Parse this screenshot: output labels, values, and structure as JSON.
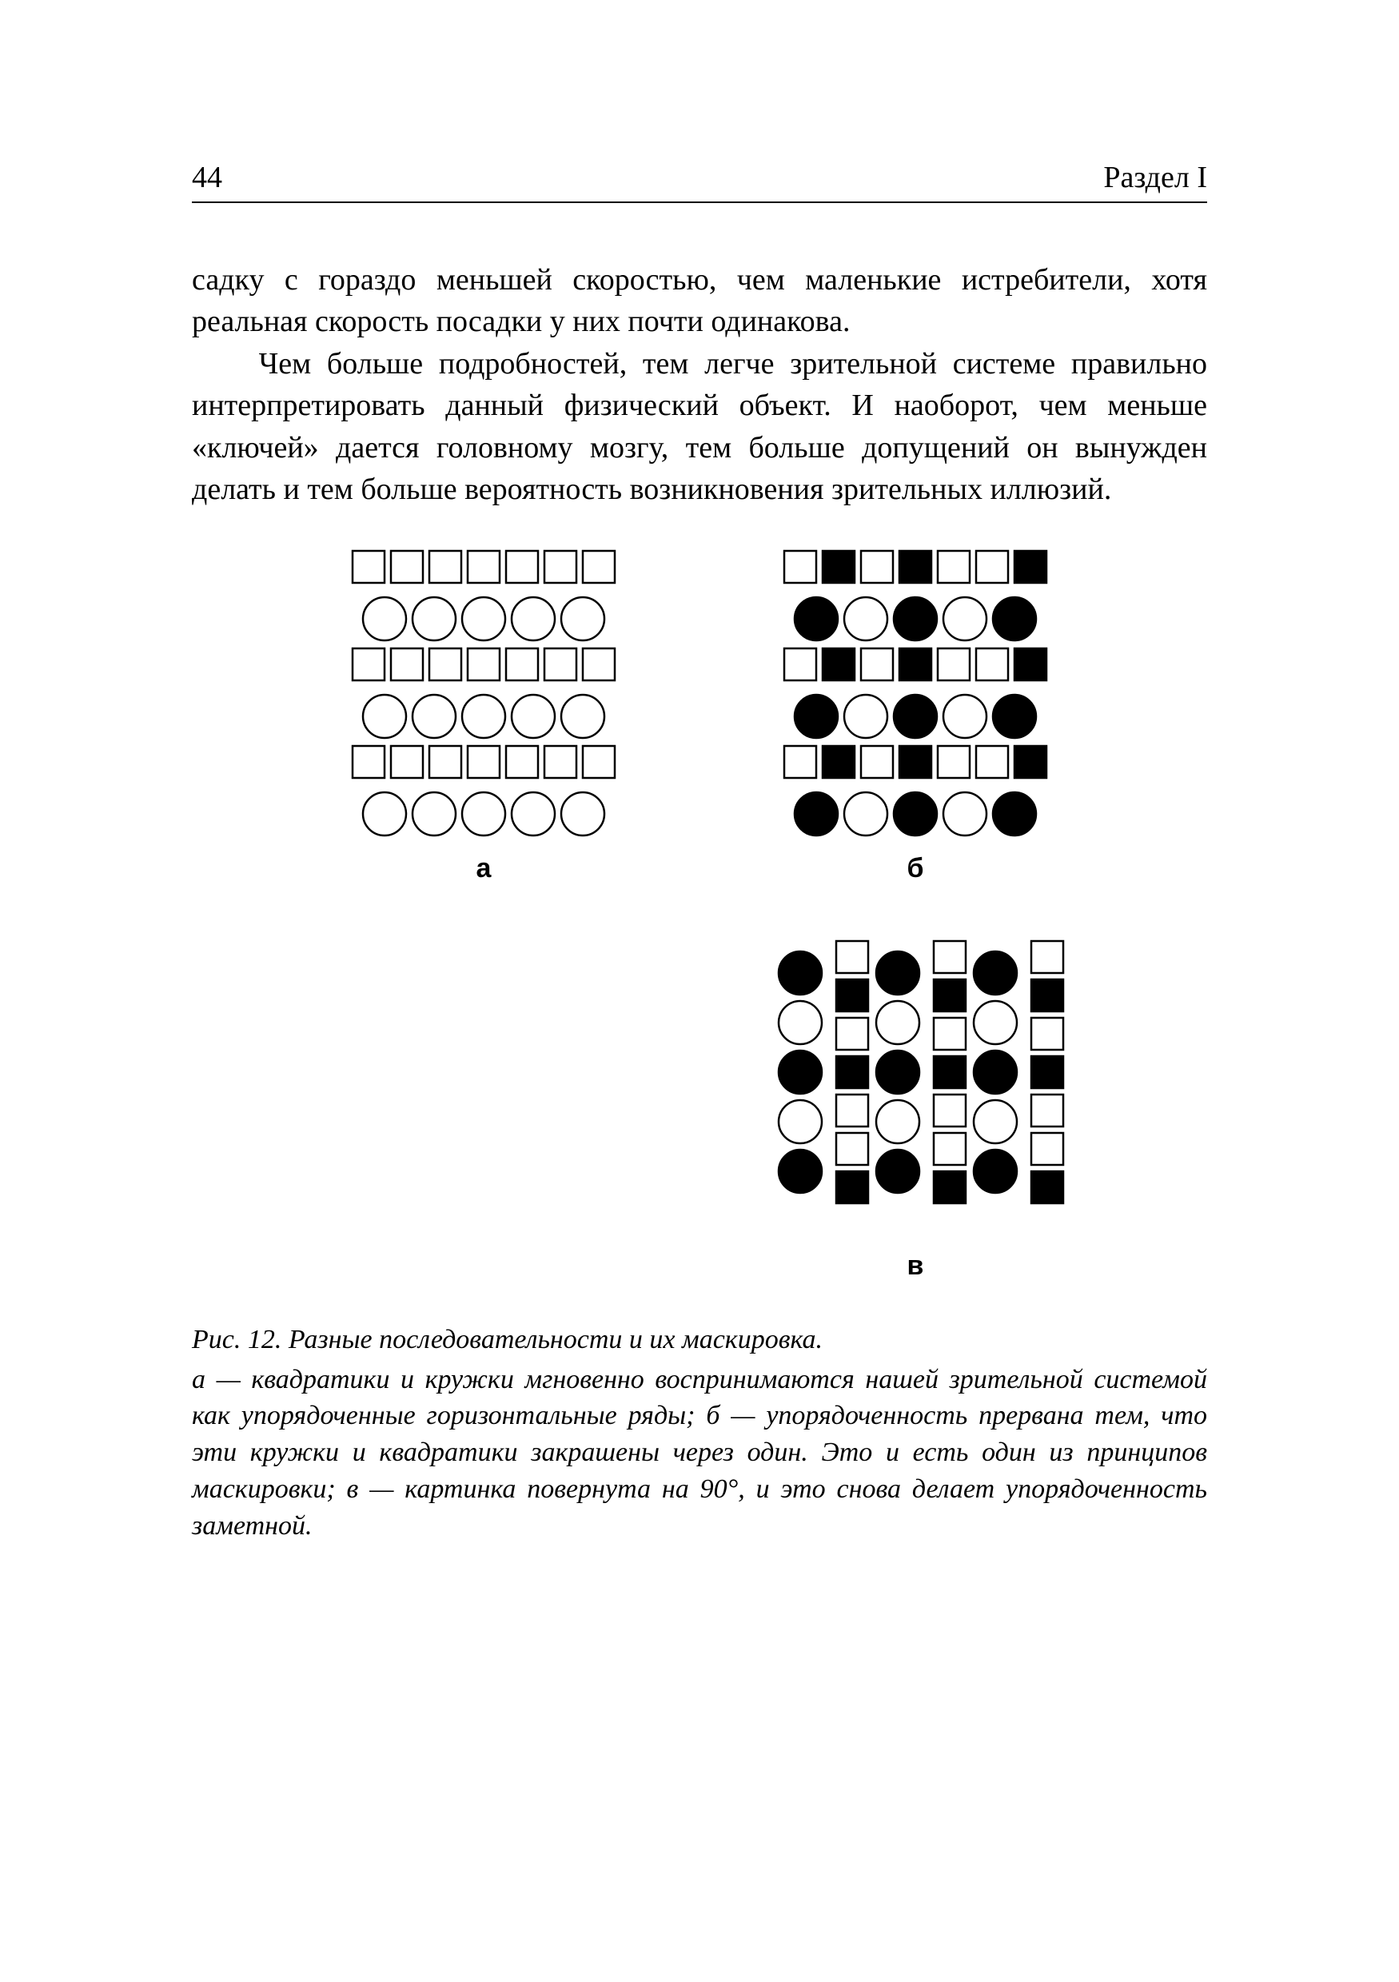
{
  "header": {
    "page_number": "44",
    "section": "Раздел I"
  },
  "paragraphs": {
    "p1": "садку с гораздо меньшей скоростью, чем маленькие истребители, хотя реальная скорость посадки у них почти одинакова.",
    "p2": "Чем больше подробностей, тем легче зрительной системе правильно интерпретировать данный физический объект. И наоборот, чем меньше «ключей» дается головному мозгу, тем больше допущений он вынужден делать и тем больше вероятность возникновения зрительных иллюзий."
  },
  "figure": {
    "colors": {
      "stroke": "#000000",
      "fill_black": "#000000",
      "fill_white": "#ffffff"
    },
    "stroke_width": 2.5,
    "square_size": 40,
    "circle_r": 27,
    "panel_a": {
      "label": "а",
      "rows": [
        {
          "shape": "square",
          "count": 7,
          "fills": [
            0,
            0,
            0,
            0,
            0,
            0,
            0
          ]
        },
        {
          "shape": "circle",
          "count": 5,
          "fills": [
            0,
            0,
            0,
            0,
            0
          ]
        },
        {
          "shape": "square",
          "count": 7,
          "fills": [
            0,
            0,
            0,
            0,
            0,
            0,
            0
          ]
        },
        {
          "shape": "circle",
          "count": 5,
          "fills": [
            0,
            0,
            0,
            0,
            0
          ]
        },
        {
          "shape": "square",
          "count": 7,
          "fills": [
            0,
            0,
            0,
            0,
            0,
            0,
            0
          ]
        },
        {
          "shape": "circle",
          "count": 5,
          "fills": [
            0,
            0,
            0,
            0,
            0
          ]
        }
      ]
    },
    "panel_b": {
      "label": "б",
      "rows": [
        {
          "shape": "square",
          "count": 7,
          "fills": [
            0,
            1,
            0,
            1,
            0,
            0,
            1
          ]
        },
        {
          "shape": "circle",
          "count": 5,
          "fills": [
            1,
            0,
            1,
            0,
            1
          ]
        },
        {
          "shape": "square",
          "count": 7,
          "fills": [
            0,
            1,
            0,
            1,
            0,
            0,
            1
          ]
        },
        {
          "shape": "circle",
          "count": 5,
          "fills": [
            1,
            0,
            1,
            0,
            1
          ]
        },
        {
          "shape": "square",
          "count": 7,
          "fills": [
            0,
            1,
            0,
            1,
            0,
            0,
            1
          ]
        },
        {
          "shape": "circle",
          "count": 5,
          "fills": [
            1,
            0,
            1,
            0,
            1
          ]
        }
      ]
    },
    "panel_v": {
      "label": "в"
    }
  },
  "caption": {
    "title": "Рис. 12. Разные последовательности и их маскировка.",
    "body": "а — квадратики и кружки мгновенно воспринимаются нашей зрительной системой как упорядоченные горизонтальные ряды; б — упорядоченность прервана тем, что эти кружки и квадратики закрашены через один. Это и есть один из принципов маскировки; в — картинка повернута на 90°, и это снова делает упорядоченность заметной."
  }
}
